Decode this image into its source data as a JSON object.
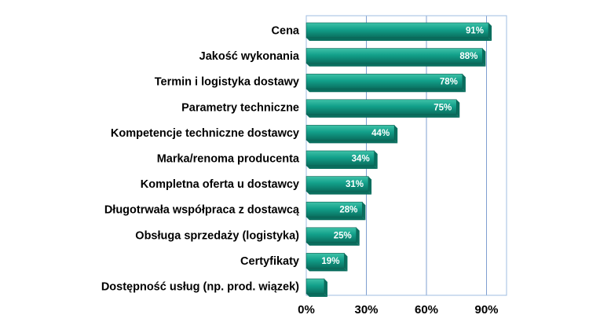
{
  "chart_data": {
    "type": "bar",
    "orientation": "horizontal",
    "categories": [
      "Cena",
      "Jakość wykonania",
      "Termin i logistyka dostawy",
      "Parametry techniczne",
      "Kompetencje techniczne dostawcy",
      "Marka/renoma producenta",
      "Kompletna oferta u dostawcy",
      "Długotrwała współpraca z dostawcą",
      "Obsługa sprzedaży (logistyka)",
      "Certyfikaty",
      "Dostępność usług (np. prod. wiązek)"
    ],
    "values": [
      91,
      88,
      78,
      75,
      44,
      34,
      31,
      28,
      25,
      19,
      9
    ],
    "data_labels": [
      "91%",
      "88%",
      "78%",
      "75%",
      "44%",
      "34%",
      "31%",
      "28%",
      "25%",
      "19%",
      ""
    ],
    "x_ticks": [
      0,
      30,
      60,
      90
    ],
    "x_tick_labels": [
      "0%",
      "30%",
      "60%",
      "90%"
    ],
    "xlim": [
      0,
      100
    ],
    "grid": true,
    "title": "",
    "xlabel": "",
    "ylabel": "",
    "colors": {
      "bar": "#12a08a",
      "bar_light": "#3fc2a8",
      "bar_dark": "#0a6e5e",
      "bar_edge": "#0b5e50",
      "gridline": "#7f9fd0",
      "plot_border": "#9fbde0"
    }
  }
}
